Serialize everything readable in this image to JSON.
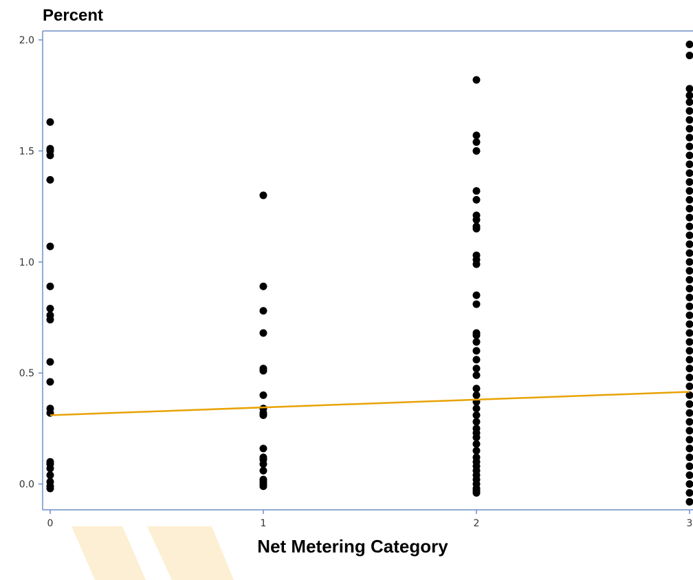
{
  "chart_data": {
    "type": "scatter",
    "ylabel": "Percent",
    "xlabel": "Net Metering Category",
    "xlim": [
      0,
      3
    ],
    "ylim": [
      -0.1,
      2.05
    ],
    "x_ticks": [
      "0",
      "1",
      "2",
      "3"
    ],
    "y_ticks": [
      "0.0",
      "0.5",
      "1.0",
      "1.5",
      "2.0"
    ],
    "grid": false,
    "colors": {
      "points": "#000000",
      "fit_line": "#E8A202",
      "axis": "#6B8FC9",
      "decoration": "#FDEFD3"
    },
    "fit_line": {
      "x": [
        0,
        3
      ],
      "y": [
        0.31,
        0.415
      ]
    },
    "series": [
      {
        "x": 0,
        "y": [
          1.63,
          1.51,
          1.5,
          1.48,
          1.37,
          1.07,
          0.89,
          0.79,
          0.76,
          0.74,
          0.55,
          0.46,
          0.34,
          0.32,
          0.1,
          0.09,
          0.07,
          0.04,
          0.01,
          -0.01,
          -0.02
        ]
      },
      {
        "x": 1,
        "y": [
          1.3,
          0.89,
          0.78,
          0.68,
          0.52,
          0.51,
          0.4,
          0.34,
          0.32,
          0.31,
          0.16,
          0.12,
          0.11,
          0.09,
          0.06,
          0.02,
          0.01,
          0.0,
          -0.01
        ]
      },
      {
        "x": 2,
        "y": [
          1.82,
          1.57,
          1.54,
          1.5,
          1.32,
          1.28,
          1.21,
          1.19,
          1.16,
          1.15,
          1.03,
          1.01,
          0.99,
          0.85,
          0.81,
          0.68,
          0.67,
          0.64,
          0.6,
          0.56,
          0.52,
          0.49,
          0.43,
          0.4,
          0.37,
          0.34,
          0.31,
          0.28,
          0.25,
          0.23,
          0.21,
          0.18,
          0.15,
          0.12,
          0.1,
          0.08,
          0.06,
          0.04,
          0.02,
          0.0,
          -0.02,
          -0.03,
          -0.04
        ]
      },
      {
        "x": 3,
        "y": [
          1.98,
          1.93,
          1.78,
          1.75,
          1.72,
          1.68,
          1.64,
          1.6,
          1.56,
          1.52,
          1.48,
          1.44,
          1.4,
          1.36,
          1.32,
          1.28,
          1.24,
          1.2,
          1.16,
          1.12,
          1.08,
          1.04,
          1.0,
          0.96,
          0.92,
          0.88,
          0.84,
          0.8,
          0.76,
          0.72,
          0.68,
          0.64,
          0.6,
          0.56,
          0.52,
          0.48,
          0.44,
          0.4,
          0.36,
          0.32,
          0.28,
          0.24,
          0.2,
          0.16,
          0.12,
          0.08,
          0.04,
          0.0,
          -0.04,
          -0.08
        ]
      }
    ]
  }
}
